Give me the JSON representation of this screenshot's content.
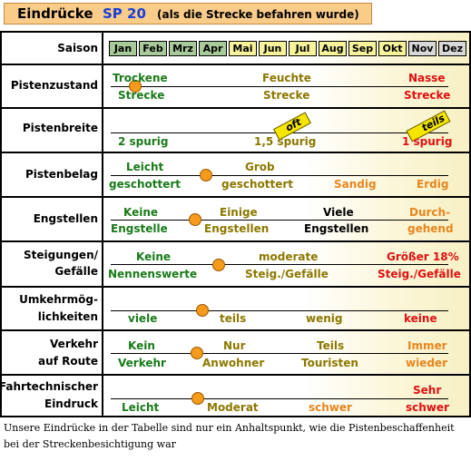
{
  "header": {
    "title_prefix": "Eindrücke",
    "title_code": "SP 20",
    "subtitle": "(als die Strecke befahren wurde)"
  },
  "colors": {
    "green": "#1a7a1a",
    "olive": "#8c7800",
    "dark": "#000000",
    "orange": "#e8861e",
    "red": "#e01010",
    "marker": "#f59a1a"
  },
  "season": {
    "label": "Saison",
    "months": [
      {
        "name": "Jan",
        "bg": "#a8c99a"
      },
      {
        "name": "Feb",
        "bg": "#a8c99a"
      },
      {
        "name": "Mrz",
        "bg": "#a8c99a"
      },
      {
        "name": "Apr",
        "bg": "#a8c99a"
      },
      {
        "name": "Mai",
        "bg": "#f7f39a"
      },
      {
        "name": "Jun",
        "bg": "#f7f39a"
      },
      {
        "name": "Jul",
        "bg": "#f7f39a"
      },
      {
        "name": "Aug",
        "bg": "#f7f39a"
      },
      {
        "name": "Sep",
        "bg": "#f7f39a"
      },
      {
        "name": "Okt",
        "bg": "#f7f39a"
      },
      {
        "name": "Nov",
        "bg": "#d8d8d8"
      },
      {
        "name": "Dez",
        "bg": "#d8d8d8"
      }
    ]
  },
  "rows": [
    {
      "label": "Pistenzustand",
      "marker": "left",
      "texts": [
        {
          "t": "Trockene",
          "c": "green"
        },
        {
          "t": "Strecke",
          "c": "green"
        },
        {
          "t": "Feuchte",
          "c": "olive"
        },
        {
          "t": "Strecke",
          "c": "olive"
        },
        {
          "t": "Nasse",
          "c": "red"
        },
        {
          "t": "Strecke",
          "c": "red"
        }
      ]
    },
    {
      "label": "Pistenbreite",
      "arrows": [
        {
          "t": "oft"
        },
        {
          "t": "teils"
        }
      ],
      "texts": [
        {
          "t": "2 spurig",
          "c": "green"
        },
        {
          "t": "1,5 spurig",
          "c": "olive"
        },
        {
          "t": "1 spurig",
          "c": "red"
        }
      ]
    },
    {
      "label": "Pistenbelag",
      "texts": [
        {
          "t": "Leicht",
          "c": "green"
        },
        {
          "t": "geschottert",
          "c": "green"
        },
        {
          "t": "Grob",
          "c": "olive"
        },
        {
          "t": "geschottert",
          "c": "olive"
        },
        {
          "t": "Sandig",
          "c": "orange"
        },
        {
          "t": "Erdig",
          "c": "orange"
        }
      ]
    },
    {
      "label": "Engstellen",
      "texts": [
        {
          "t": "Keine",
          "c": "green"
        },
        {
          "t": "Engstelle",
          "c": "green"
        },
        {
          "t": "Einige",
          "c": "olive"
        },
        {
          "t": "Engstellen",
          "c": "olive"
        },
        {
          "t": "Viele",
          "c": "dark"
        },
        {
          "t": "Engstellen",
          "c": "dark"
        },
        {
          "t": "Durch-",
          "c": "orange"
        },
        {
          "t": "gehend",
          "c": "orange"
        }
      ]
    },
    {
      "label": "Steigungen/",
      "label2": "Gefälle",
      "texts": [
        {
          "t": "Keine",
          "c": "green"
        },
        {
          "t": "Nennenswerte",
          "c": "green"
        },
        {
          "t": "moderate",
          "c": "olive"
        },
        {
          "t": "Steig./Gefälle",
          "c": "olive"
        },
        {
          "t": "Größer 18%",
          "c": "red"
        },
        {
          "t": "Steig./Gefälle",
          "c": "red"
        }
      ]
    },
    {
      "label": "Umkehrmög-",
      "label2": "lichkeiten",
      "texts": [
        {
          "t": "viele",
          "c": "green"
        },
        {
          "t": "teils",
          "c": "olive"
        },
        {
          "t": "wenig",
          "c": "olive"
        },
        {
          "t": "keine",
          "c": "red"
        }
      ]
    },
    {
      "label": "Verkehr",
      "label2": "auf Route",
      "texts": [
        {
          "t": "Kein",
          "c": "green"
        },
        {
          "t": "Verkehr",
          "c": "green"
        },
        {
          "t": "Nur",
          "c": "olive"
        },
        {
          "t": "Anwohner",
          "c": "olive"
        },
        {
          "t": "Teils",
          "c": "olive"
        },
        {
          "t": "Touristen",
          "c": "olive"
        },
        {
          "t": "Immer",
          "c": "orange"
        },
        {
          "t": "wieder",
          "c": "orange"
        }
      ]
    },
    {
      "label": "Fahrtechnischer",
      "label2": "Eindruck",
      "texts": [
        {
          "t": "Leicht",
          "c": "green"
        },
        {
          "t": "Moderat",
          "c": "olive"
        },
        {
          "t": "schwer",
          "c": "orange"
        },
        {
          "t": "Sehr",
          "c": "red"
        },
        {
          "t": "schwer",
          "c": "red"
        }
      ]
    }
  ],
  "caption": "Unsere Eindrücke in der Tabelle sind nur ein Anhaltspunkt, wie die Pistenbeschaffenheit bei der Streckenbesichtigung war"
}
